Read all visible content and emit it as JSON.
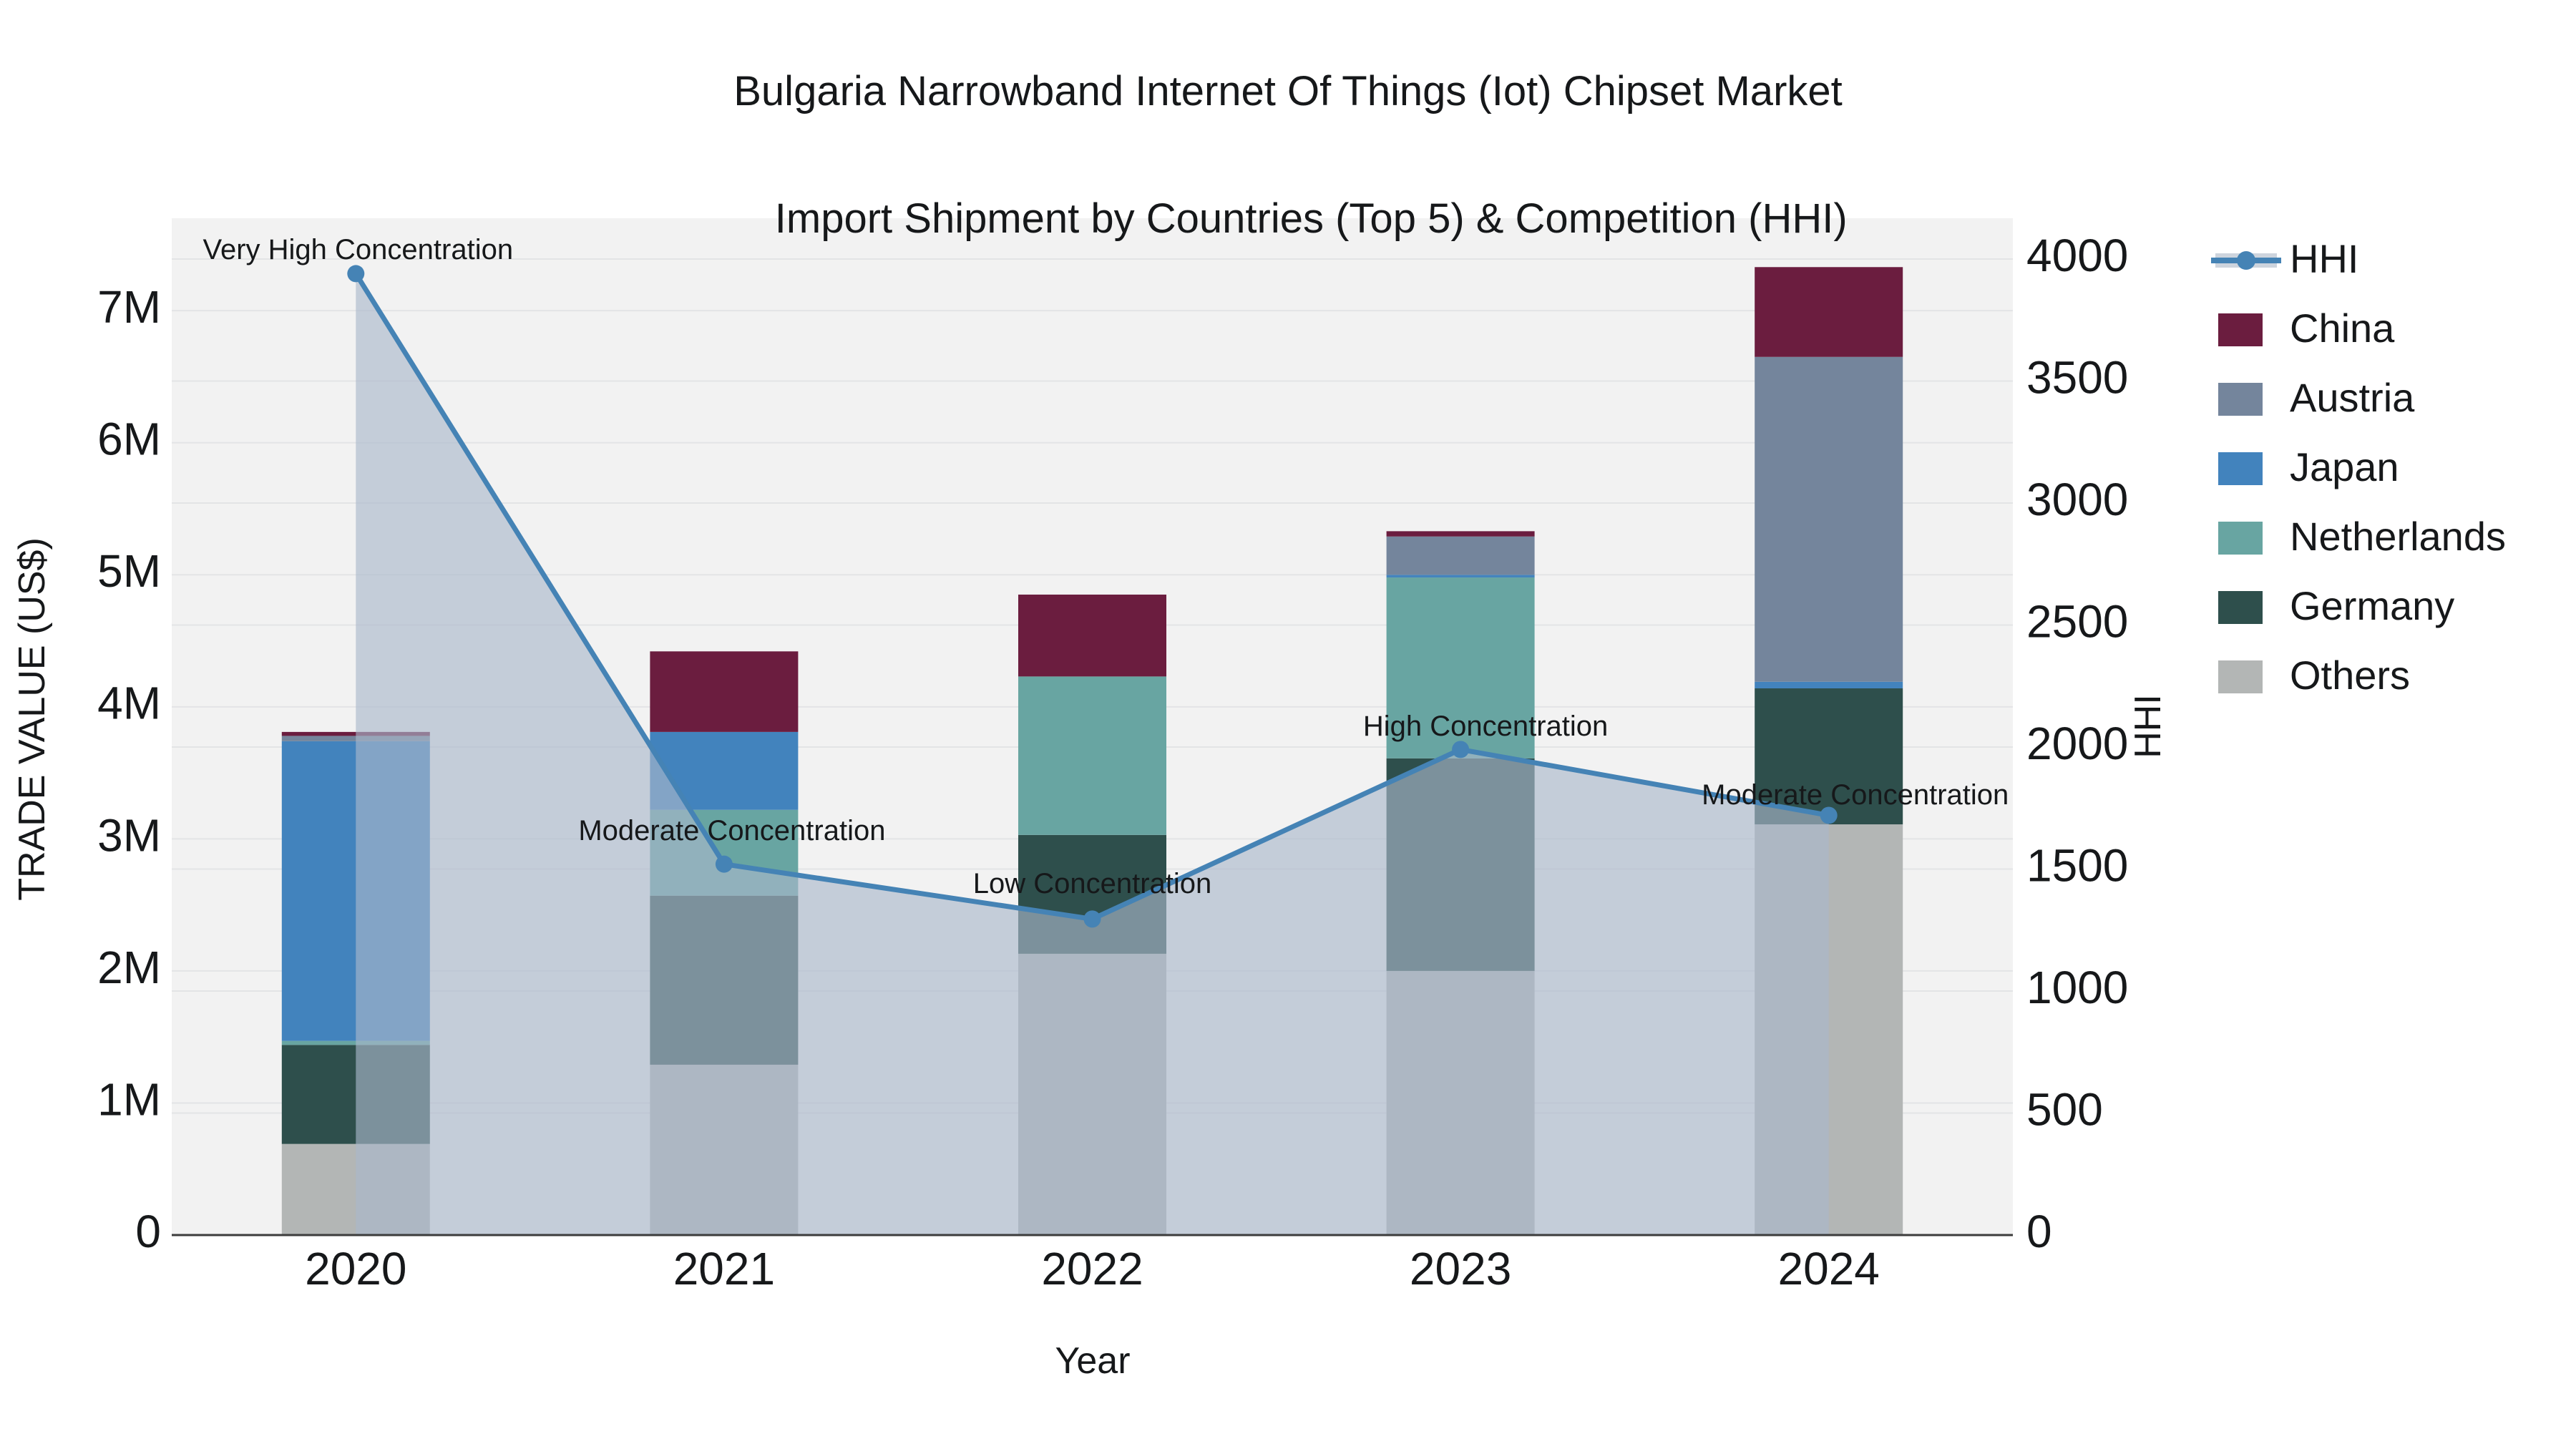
{
  "title": {
    "line1": "Bulgaria Narrowband Internet Of Things (Iot) Chipset Market",
    "line2": "Import Shipment by Countries (Top 5) & Competition (HHI)"
  },
  "chart_data": {
    "type": "combo: stacked bar + line with area",
    "x": {
      "label": "Year",
      "categories": [
        "2020",
        "2021",
        "2022",
        "2023",
        "2024"
      ]
    },
    "y_left": {
      "label": "TRADE VALUE (US$)",
      "tick_labels": [
        "0",
        "1M",
        "2M",
        "3M",
        "4M",
        "5M",
        "6M",
        "7M"
      ],
      "tick_values_millions": [
        0,
        1,
        2,
        3,
        4,
        5,
        6,
        7
      ],
      "axis_max_millions": 7.7,
      "grid": true
    },
    "y_right": {
      "label": "HHI",
      "tick_labels": [
        "0",
        "500",
        "1000",
        "1500",
        "2000",
        "2500",
        "3000",
        "3500",
        "4000"
      ],
      "tick_values": [
        0,
        500,
        1000,
        1500,
        2000,
        2500,
        3000,
        3500,
        4000
      ],
      "axis_max": 4167,
      "grid": true
    },
    "unit": "US$ millions",
    "stack_order_bottom_to_top": [
      "Others",
      "Germany",
      "Netherlands",
      "Japan",
      "Austria",
      "China"
    ],
    "series": [
      {
        "name": "Others",
        "color": "#b3b6b5",
        "values_millions": [
          0.69,
          1.29,
          2.13,
          2.0,
          3.11
        ]
      },
      {
        "name": "Germany",
        "color": "#2e4f4c",
        "values_millions": [
          0.75,
          1.28,
          0.9,
          1.61,
          1.03
        ]
      },
      {
        "name": "Netherlands",
        "color": "#68a5a2",
        "values_millions": [
          0.03,
          0.65,
          1.2,
          1.37,
          0.0
        ]
      },
      {
        "name": "Japan",
        "color": "#4283bd",
        "values_millions": [
          2.27,
          0.59,
          0.0,
          0.02,
          0.05
        ]
      },
      {
        "name": "Austria",
        "color": "#74859c",
        "values_millions": [
          0.04,
          0.0,
          0.0,
          0.29,
          2.46
        ]
      },
      {
        "name": "China",
        "color": "#6b1d3f",
        "values_millions": [
          0.03,
          0.61,
          0.62,
          0.04,
          0.68
        ]
      }
    ],
    "totals_millions": [
      3.81,
      4.42,
      4.85,
      5.33,
      7.33
    ],
    "hhi": {
      "name": "HHI",
      "line_color": "#4583b5",
      "area_color": "rgba(170,184,203,0.63)",
      "values": [
        3940,
        1520,
        1295,
        1990,
        1720
      ],
      "annotations": [
        {
          "year": "2020",
          "label": "Very High Concentration"
        },
        {
          "year": "2021",
          "label": "Moderate Concentration"
        },
        {
          "year": "2022",
          "label": "Low Concentration"
        },
        {
          "year": "2023",
          "label": "High Concentration"
        },
        {
          "year": "2024",
          "label": "Moderate Concentration"
        }
      ]
    },
    "legend": {
      "position": "right",
      "entries": [
        {
          "name": "HHI",
          "type": "line",
          "color": "#4583b5",
          "band_color": "#cdd4dd"
        },
        {
          "name": "China",
          "type": "swatch",
          "color": "#6b1d3f"
        },
        {
          "name": "Austria",
          "type": "swatch",
          "color": "#74859c"
        },
        {
          "name": "Japan",
          "type": "swatch",
          "color": "#4283bd"
        },
        {
          "name": "Netherlands",
          "type": "swatch",
          "color": "#68a5a2"
        },
        {
          "name": "Germany",
          "type": "swatch",
          "color": "#2e4f4c"
        },
        {
          "name": "Others",
          "type": "swatch",
          "color": "#b3b6b5"
        }
      ]
    },
    "colors": {
      "plot_background": "#f2f2f2",
      "gridline": "#e3e4e6",
      "axis_line": "#3c3c3c",
      "text": "#16181a"
    }
  }
}
